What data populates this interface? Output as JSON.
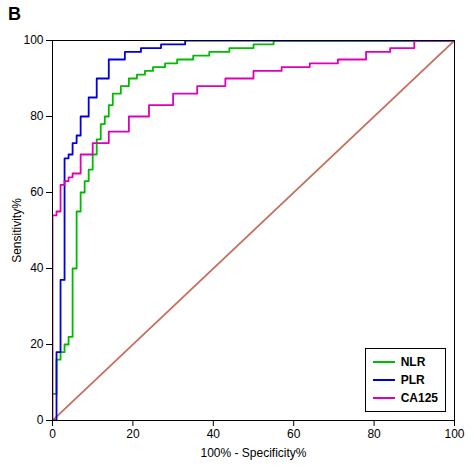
{
  "chart_data": {
    "type": "line",
    "title": "B",
    "xlabel": "100% - Specificity%",
    "ylabel": "Sensitivity%",
    "xlim": [
      0,
      100
    ],
    "ylim": [
      0,
      100
    ],
    "xticks": [
      0,
      20,
      40,
      60,
      80,
      100
    ],
    "yticks": [
      0,
      20,
      40,
      60,
      80,
      100
    ],
    "grid": false,
    "legend": "lower right",
    "series": [
      {
        "name": "NLR",
        "color": "#00bb00",
        "x": [
          0,
          1,
          1,
          2,
          2,
          3,
          3,
          4,
          4,
          5,
          5,
          6,
          6,
          7,
          7,
          8,
          8,
          9,
          9,
          10,
          10,
          11,
          11,
          12,
          12,
          13,
          13,
          14,
          14,
          15,
          15,
          17,
          17,
          19,
          19,
          21,
          21,
          23,
          23,
          25,
          25,
          28,
          28,
          31,
          31,
          35,
          35,
          39,
          39,
          44,
          44,
          50,
          50,
          55,
          55,
          61,
          61,
          67,
          67,
          73,
          73,
          79,
          79,
          85,
          85,
          90,
          90,
          95,
          95,
          100
        ],
        "values": [
          7,
          7,
          16,
          16,
          18,
          18,
          20,
          20,
          22,
          22,
          40,
          40,
          55,
          55,
          60,
          60,
          63,
          63,
          66,
          66,
          70,
          70,
          74,
          74,
          78,
          78,
          80,
          80,
          83,
          83,
          86,
          86,
          88,
          88,
          90,
          90,
          91,
          91,
          92,
          92,
          93,
          93,
          94,
          94,
          95,
          95,
          96,
          96,
          97,
          97,
          98,
          98,
          99,
          99,
          100,
          100,
          100,
          100,
          100,
          100,
          100,
          100,
          100,
          100,
          100,
          100,
          100,
          100,
          100,
          100
        ]
      },
      {
        "name": "PLR",
        "color": "#0000dd",
        "x": [
          0,
          1,
          1,
          2,
          2,
          3,
          3,
          4,
          4,
          5,
          5,
          6,
          6,
          7,
          7,
          9,
          9,
          11,
          11,
          14,
          14,
          18,
          18,
          22,
          22,
          27,
          27,
          33,
          33,
          40,
          40,
          47,
          47,
          55,
          55,
          63,
          63,
          71,
          71,
          79,
          79,
          87,
          87,
          93,
          93,
          100
        ],
        "values": [
          0,
          0,
          18,
          18,
          37,
          37,
          69,
          69,
          70,
          70,
          73,
          73,
          75,
          75,
          80,
          80,
          85,
          85,
          90,
          90,
          95,
          95,
          97,
          97,
          98,
          98,
          99,
          99,
          100,
          100,
          100,
          100,
          100,
          100,
          100,
          100,
          100,
          100,
          100,
          100,
          100,
          100,
          100,
          100,
          100,
          100
        ]
      },
      {
        "name": "CA125",
        "color": "#dd00bb",
        "x": [
          0,
          0,
          1,
          1,
          2,
          2,
          3,
          3,
          4,
          4,
          5,
          5,
          7,
          7,
          10,
          10,
          14,
          14,
          19,
          19,
          24,
          24,
          30,
          30,
          36,
          36,
          43,
          43,
          50,
          50,
          57,
          57,
          64,
          64,
          71,
          71,
          78,
          78,
          84,
          84,
          90,
          90,
          95,
          95,
          100
        ],
        "values": [
          0,
          54,
          54,
          55,
          55,
          62,
          62,
          63,
          63,
          64,
          64,
          65,
          65,
          70,
          70,
          73,
          73,
          76,
          76,
          80,
          80,
          83,
          83,
          86,
          86,
          88,
          88,
          90,
          90,
          92,
          92,
          93,
          93,
          94,
          94,
          95,
          95,
          97,
          97,
          98,
          98,
          100,
          100,
          100,
          100
        ]
      },
      {
        "color": "#c87060",
        "x": [
          0,
          100
        ],
        "values": [
          0,
          100
        ]
      }
    ]
  }
}
